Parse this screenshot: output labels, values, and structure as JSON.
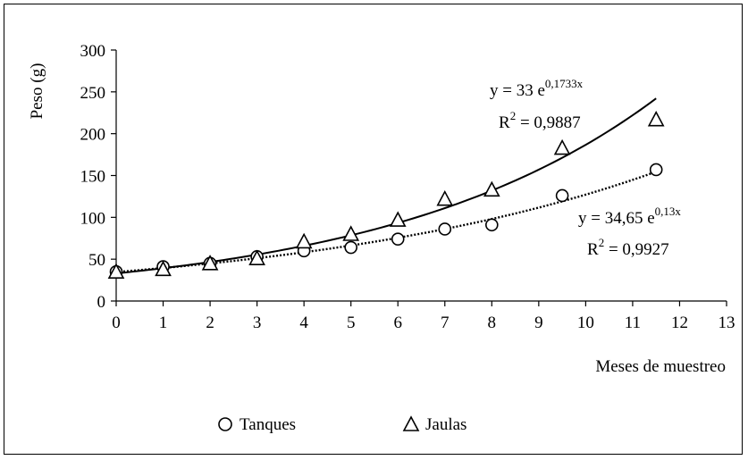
{
  "chart_data": {
    "type": "scatter",
    "ylabel": "Peso (g)",
    "xlabel": "Meses de muestreo",
    "xlim": [
      0,
      13
    ],
    "ylim": [
      0,
      300
    ],
    "x_ticks": [
      "0",
      "1",
      "2",
      "3",
      "4",
      "5",
      "6",
      "7",
      "8",
      "9",
      "10",
      "11",
      "12",
      "13"
    ],
    "y_ticks": [
      "0",
      "50",
      "100",
      "150",
      "200",
      "250",
      "300"
    ],
    "grid": false,
    "legend_position": "bottom-left",
    "series": [
      {
        "name": "Tanques",
        "marker": "circle",
        "points": [
          {
            "x": 0,
            "y": 35
          },
          {
            "x": 1,
            "y": 41
          },
          {
            "x": 2,
            "y": 45
          },
          {
            "x": 3,
            "y": 53
          },
          {
            "x": 4,
            "y": 60
          },
          {
            "x": 5,
            "y": 64
          },
          {
            "x": 6,
            "y": 74
          },
          {
            "x": 7,
            "y": 86
          },
          {
            "x": 8,
            "y": 91
          },
          {
            "x": 9.5,
            "y": 126
          },
          {
            "x": 11.5,
            "y": 157
          }
        ],
        "trend": {
          "type": "exponential",
          "a": 34.65,
          "b": 0.13,
          "style": "dotted",
          "equation_base": "y = 34,65 e",
          "equation_exp": "0,13x",
          "r2_base": "R",
          "r2_sup": "2",
          "r2_value": " = 0,9927"
        }
      },
      {
        "name": "Jaulas",
        "marker": "triangle",
        "points": [
          {
            "x": 0,
            "y": 34
          },
          {
            "x": 1,
            "y": 37
          },
          {
            "x": 2,
            "y": 44
          },
          {
            "x": 3,
            "y": 50
          },
          {
            "x": 4,
            "y": 70
          },
          {
            "x": 5,
            "y": 79
          },
          {
            "x": 6,
            "y": 96
          },
          {
            "x": 7,
            "y": 121
          },
          {
            "x": 8,
            "y": 132
          },
          {
            "x": 9.5,
            "y": 182
          },
          {
            "x": 11.5,
            "y": 216
          }
        ],
        "trend": {
          "type": "exponential",
          "a": 33,
          "b": 0.1733,
          "style": "solid",
          "equation_base": "y = 33 e",
          "equation_exp": "0,1733x",
          "r2_base": "R",
          "r2_sup": "2",
          "r2_value": " = 0,9887"
        }
      }
    ]
  }
}
